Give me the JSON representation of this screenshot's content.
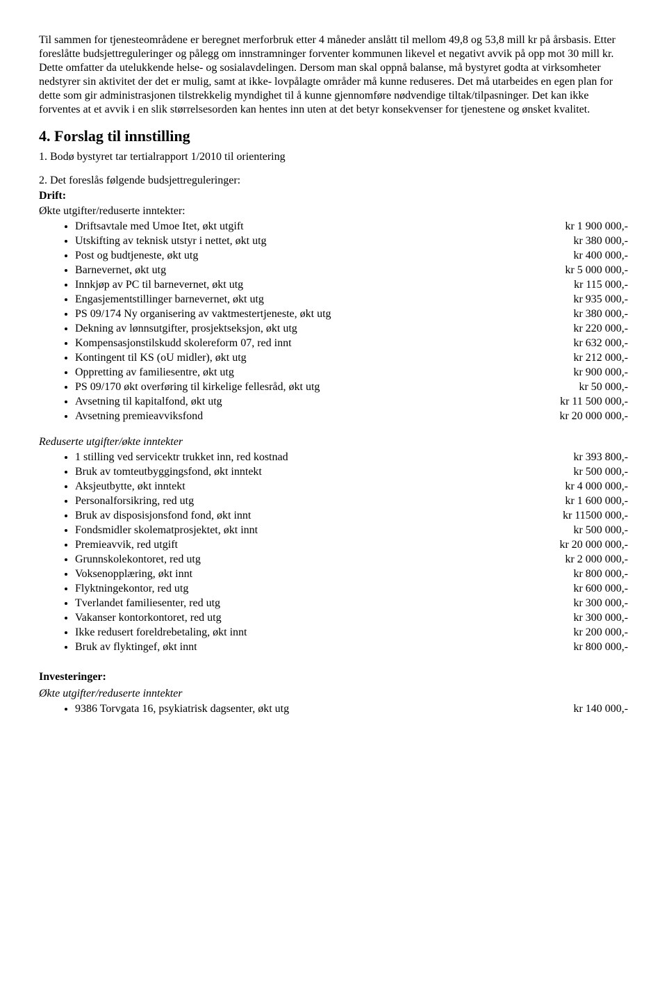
{
  "intro_paragraph": "Til sammen for tjenesteområdene er beregnet merforbruk etter 4 måneder anslått til mellom 49,8 og 53,8 mill kr på årsbasis. Etter foreslåtte budsjettreguleringer og pålegg om innstramninger forventer kommunen likevel et negativt avvik på opp mot 30 mill kr. Dette omfatter da utelukkende helse- og sosialavdelingen. Dersom man skal oppnå balanse, må bystyret godta at virksomheter nedstyrer sin aktivitet der det er mulig, samt at ikke- lovpålagte områder må kunne reduseres. Det må utarbeides en egen plan for dette som gir administrasjonen tilstrekkelig myndighet til å kunne gjennomføre nødvendige tiltak/tilpasninger. Det kan ikke forventes at et avvik i en slik størrelsesorden kan hentes inn uten at det betyr konsekvenser for tjenestene og ønsket kvalitet.",
  "section4_title": "4. Forslag til innstilling",
  "point1": "1. Bodø bystyret tar tertialrapport 1/2010 til orientering",
  "point2": "2. Det foreslås følgende budsjettreguleringer:",
  "drift_label": "Drift:",
  "okte_utg_label": "Økte utgifter/reduserte inntekter:",
  "drift_increase": [
    {
      "label": "Driftsavtale med Umoe Itet, økt utgift",
      "amount": "kr 1 900 000,-"
    },
    {
      "label": "Utskifting av teknisk utstyr i nettet, økt utg",
      "amount": "kr    380 000,-"
    },
    {
      "label": "Post og budtjeneste, økt utg",
      "amount": "kr    400 000,-"
    },
    {
      "label": "Barnevernet, økt utg",
      "amount": "kr 5 000 000,-"
    },
    {
      "label": "Innkjøp av PC til barnevernet, økt utg",
      "amount": "kr    115 000,-"
    },
    {
      "label": "Engasjementstillinger barnevernet, økt utg",
      "amount": "kr    935 000,-"
    },
    {
      "label": "PS 09/174 Ny organisering av vaktmestertjeneste, økt utg",
      "amount": "kr    380 000,-"
    },
    {
      "label": "Dekning av lønnsutgifter, prosjektseksjon, økt utg",
      "amount": "kr    220 000,-"
    },
    {
      "label": "Kompensasjonstilskudd skolereform 07, red innt",
      "amount": "kr    632 000,-"
    },
    {
      "label": "Kontingent til KS (oU midler), økt utg",
      "amount": "kr    212 000,-"
    },
    {
      "label": "Oppretting av familiesentre, økt utg",
      "amount": "kr    900 000,-"
    },
    {
      "label": "PS 09/170 økt overføring til kirkelige fellesråd, økt utg",
      "amount": "kr      50 000,-"
    },
    {
      "label": "Avsetning til kapitalfond, økt utg",
      "amount": "kr 11 500 000,-"
    },
    {
      "label": "Avsetning premieavviksfond",
      "amount": "kr 20 000 000,-"
    }
  ],
  "red_utg_label": "Reduserte utgifter/økte inntekter",
  "drift_decrease": [
    {
      "label": "1 stilling ved servicektr trukket inn, red kostnad",
      "amount": "kr    393 800,-"
    },
    {
      "label": "Bruk av tomteutbyggingsfond, økt inntekt",
      "amount": "kr    500 000,-"
    },
    {
      "label": "Aksjeutbytte, økt inntekt",
      "amount": "kr 4 000 000,-"
    },
    {
      "label": "Personalforsikring, red utg",
      "amount": "kr 1 600 000,-"
    },
    {
      "label": "Bruk av disposisjonsfond fond, økt innt",
      "amount": "kr 11500 000,-"
    },
    {
      "label": "Fondsmidler skolematprosjektet, økt innt",
      "amount": "kr    500 000,-"
    },
    {
      "label": "Premieavvik, red utgift",
      "amount": "kr 20 000 000,-"
    },
    {
      "label": "Grunnskolekontoret, red utg",
      "amount": "kr 2 000 000,-"
    },
    {
      "label": "Voksenopplæring, økt innt",
      "amount": "kr    800 000,-"
    },
    {
      "label": "Flyktningekontor, red utg",
      "amount": "kr    600 000,-"
    },
    {
      "label": "Tverlandet familiesenter, red utg",
      "amount": "kr    300 000,-"
    },
    {
      "label": "Vakanser kontorkontoret, red utg",
      "amount": "kr    300 000,-"
    },
    {
      "label": "Ikke redusert foreldrebetaling, økt innt",
      "amount": "kr    200 000,-"
    },
    {
      "label": "Bruk av flyktingef, økt innt",
      "amount": "kr    800 000,-"
    }
  ],
  "inv_label": "Investeringer:",
  "inv_sub_label": "Økte utgifter/reduserte inntekter",
  "investments": [
    {
      "label": "9386 Torvgata 16, psykiatrisk dagsenter, økt utg",
      "amount": "kr    140 000,-"
    }
  ]
}
